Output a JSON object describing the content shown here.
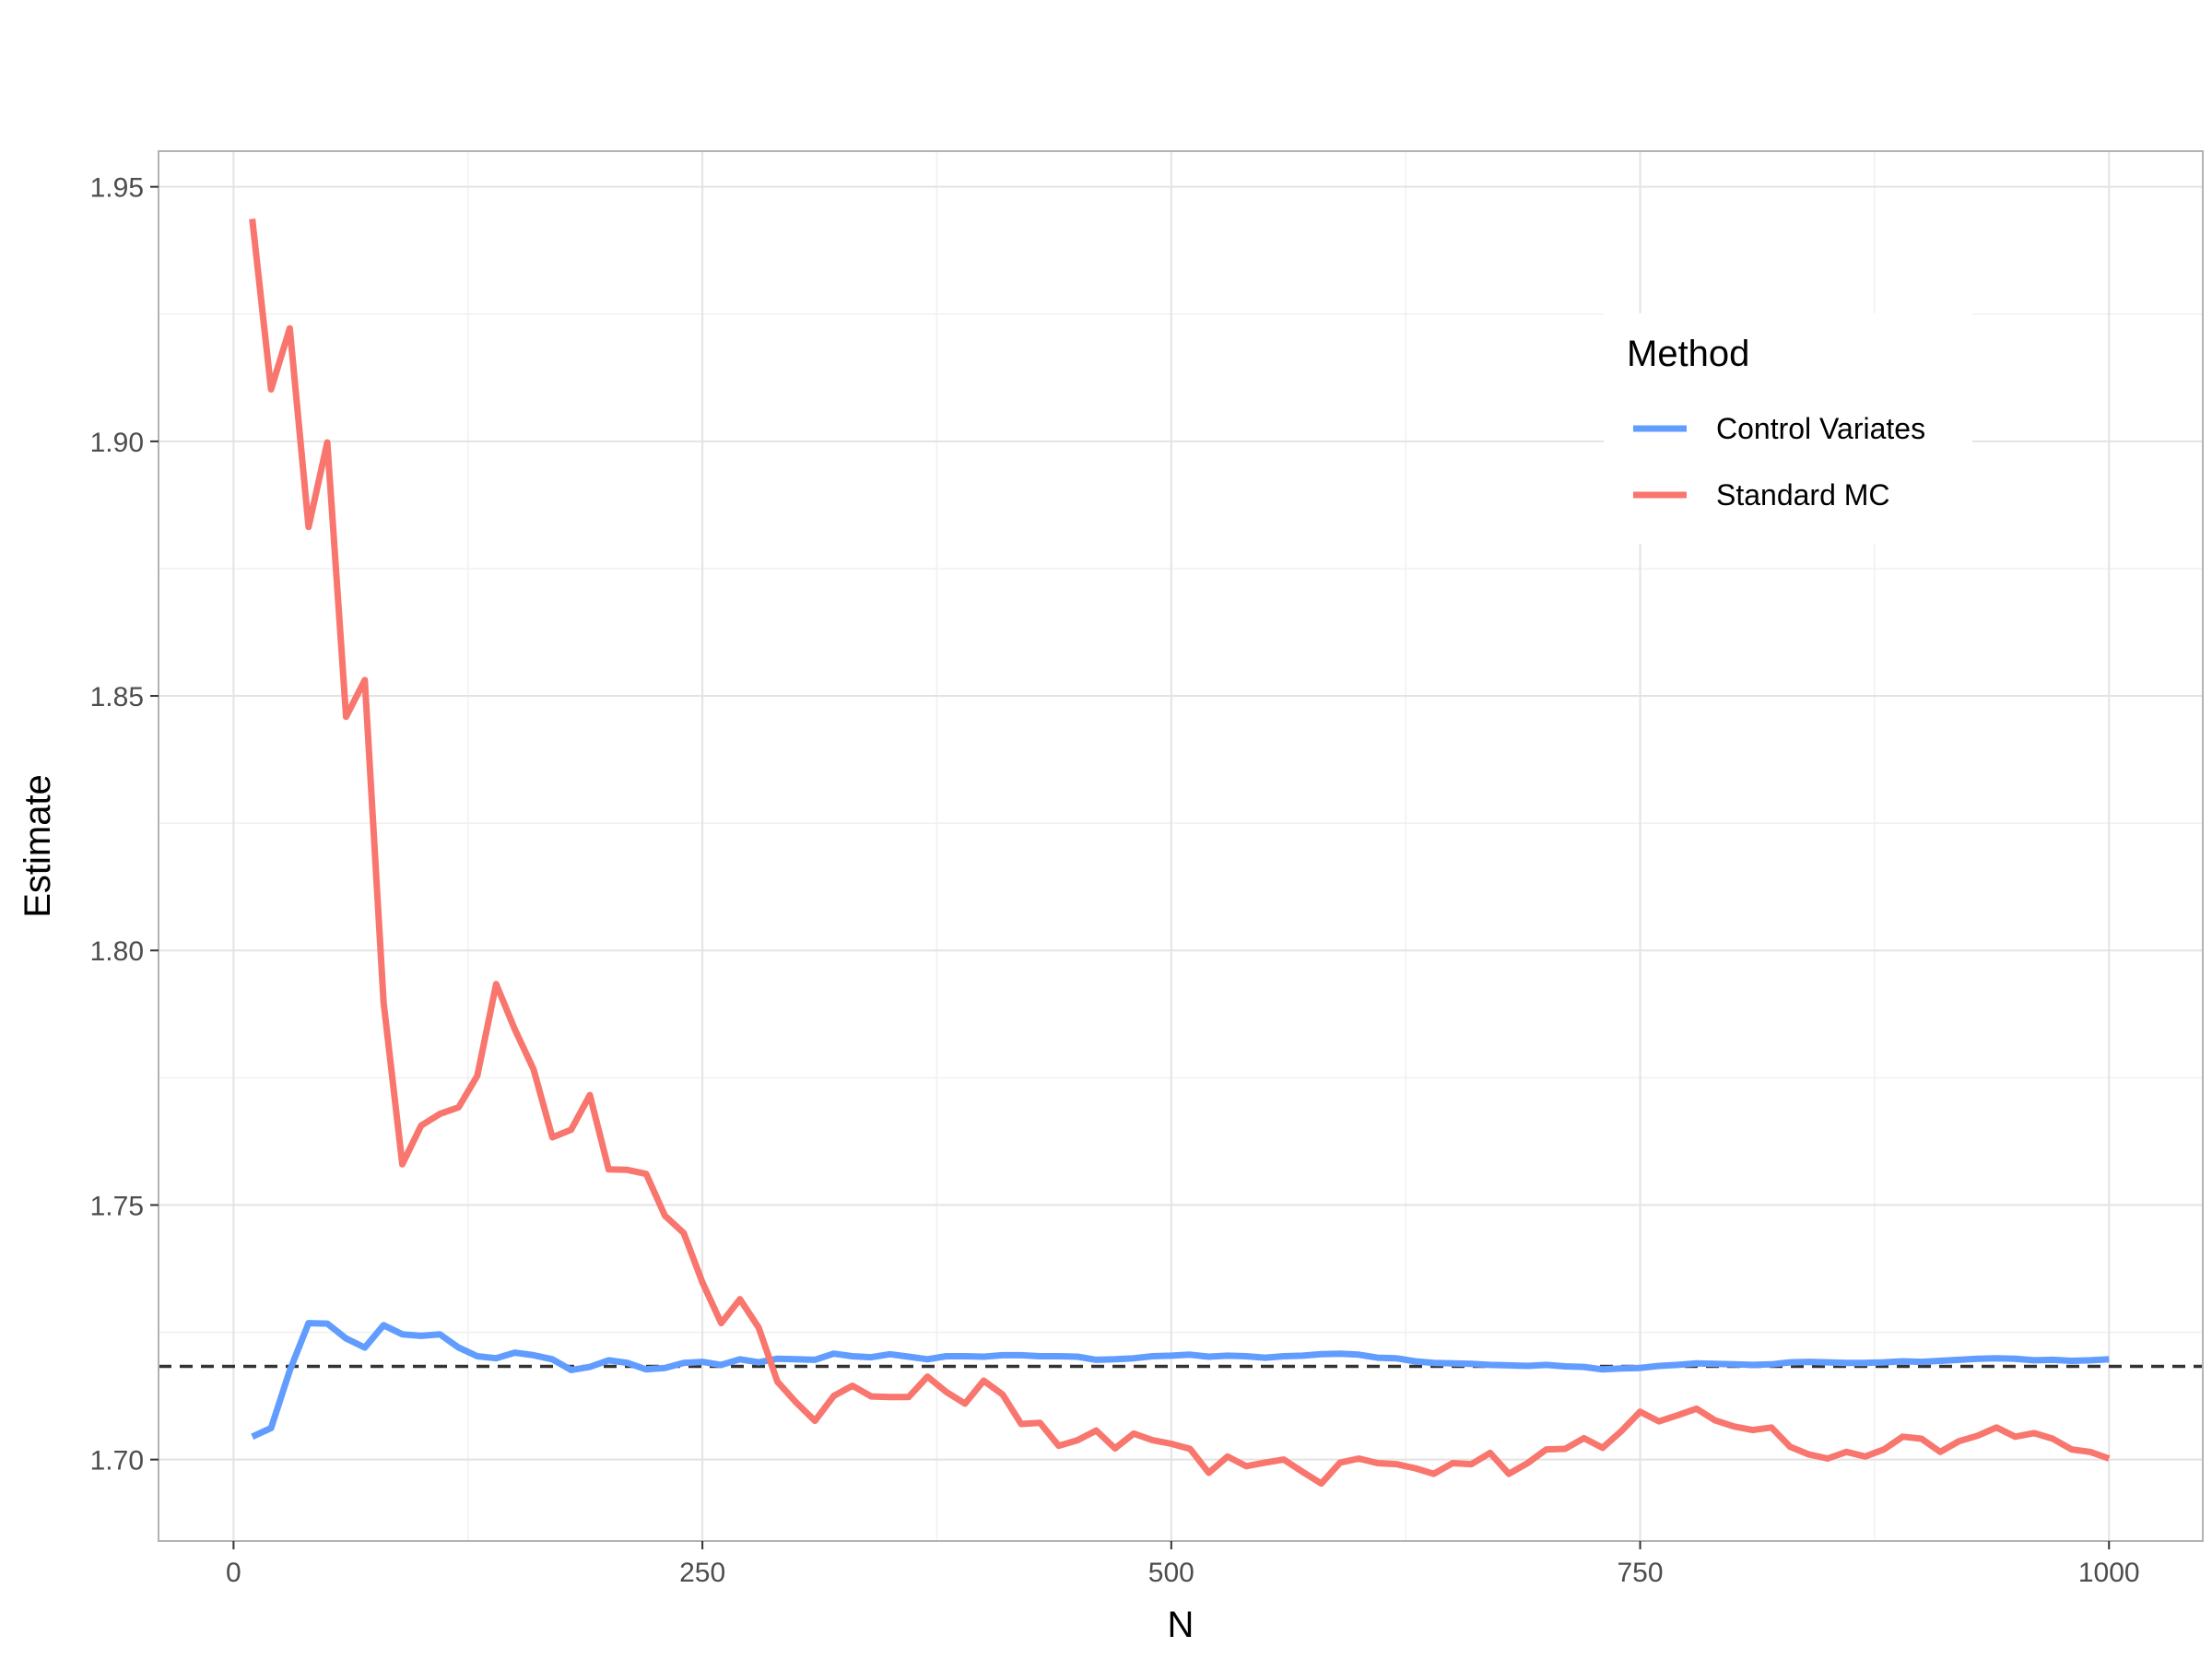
{
  "chart_data": {
    "type": "line",
    "title": "",
    "xlabel": "N",
    "ylabel": "Estimate",
    "xlim": [
      -40,
      1050
    ],
    "ylim": [
      1.684,
      1.957
    ],
    "x_ticks": [
      0,
      250,
      500,
      750,
      1000
    ],
    "x_tick_labels": [
      "0",
      "250",
      "500",
      "750",
      "1000"
    ],
    "y_ticks": [
      1.7,
      1.75,
      1.8,
      1.85,
      1.9,
      1.95
    ],
    "y_tick_labels": [
      "1.70",
      "1.75",
      "1.80",
      "1.85",
      "1.90",
      "1.95"
    ],
    "grid": true,
    "legend": {
      "title": "Method",
      "placement": "top-right",
      "entries": [
        "Control Variates",
        "Standard MC"
      ]
    },
    "reference_line": {
      "y": 1.7183,
      "style": "dashed",
      "color": "#333333"
    },
    "series": [
      {
        "name": "Control Variates",
        "color": "#619CFF",
        "x": [
          10,
          20,
          30,
          40,
          50,
          60,
          70,
          80,
          90,
          100,
          110,
          120,
          130,
          140,
          150,
          160,
          170,
          180,
          190,
          200,
          210,
          220,
          230,
          240,
          250,
          260,
          270,
          280,
          290,
          300,
          310,
          320,
          330,
          340,
          350,
          360,
          370,
          380,
          390,
          400,
          410,
          420,
          430,
          440,
          450,
          460,
          470,
          480,
          490,
          500,
          510,
          520,
          530,
          540,
          550,
          560,
          570,
          580,
          590,
          600,
          610,
          620,
          630,
          640,
          650,
          660,
          670,
          680,
          690,
          700,
          710,
          720,
          730,
          740,
          750,
          760,
          770,
          780,
          790,
          800,
          810,
          820,
          830,
          840,
          850,
          860,
          870,
          880,
          890,
          900,
          910,
          920,
          930,
          940,
          950,
          960,
          970,
          980,
          990,
          1000
        ],
        "y": [
          1.7045,
          1.7062,
          1.7175,
          1.7268,
          1.7267,
          1.7238,
          1.722,
          1.7264,
          1.7246,
          1.7243,
          1.7246,
          1.722,
          1.7203,
          1.7199,
          1.721,
          1.7205,
          1.7197,
          1.7176,
          1.7182,
          1.7195,
          1.719,
          1.7177,
          1.718,
          1.719,
          1.7192,
          1.7186,
          1.7197,
          1.7191,
          1.7198,
          1.7197,
          1.7196,
          1.7208,
          1.7203,
          1.7201,
          1.7207,
          1.7202,
          1.7197,
          1.7203,
          1.7203,
          1.7202,
          1.7205,
          1.7205,
          1.7203,
          1.7203,
          1.7202,
          1.7196,
          1.7197,
          1.7199,
          1.7203,
          1.7204,
          1.7206,
          1.7202,
          1.7204,
          1.7203,
          1.72,
          1.7203,
          1.7204,
          1.7207,
          1.7208,
          1.7206,
          1.72,
          1.7199,
          1.7193,
          1.719,
          1.7189,
          1.7188,
          1.7186,
          1.7185,
          1.7184,
          1.7186,
          1.7183,
          1.7182,
          1.7177,
          1.7179,
          1.718,
          1.7184,
          1.7186,
          1.7189,
          1.7188,
          1.7187,
          1.7186,
          1.7187,
          1.7191,
          1.7192,
          1.7191,
          1.719,
          1.719,
          1.7191,
          1.7193,
          1.7192,
          1.7194,
          1.7196,
          1.7198,
          1.7199,
          1.7198,
          1.7195,
          1.7196,
          1.7194,
          1.7195,
          1.7197
        ]
      },
      {
        "name": "Standard MC",
        "color": "#F8766D",
        "x": [
          10,
          20,
          30,
          40,
          50,
          60,
          70,
          80,
          90,
          100,
          110,
          120,
          130,
          140,
          150,
          160,
          170,
          180,
          190,
          200,
          210,
          220,
          230,
          240,
          250,
          260,
          270,
          280,
          290,
          300,
          310,
          320,
          330,
          340,
          350,
          360,
          370,
          380,
          390,
          400,
          410,
          420,
          430,
          440,
          450,
          460,
          470,
          480,
          490,
          500,
          510,
          520,
          530,
          540,
          550,
          560,
          570,
          580,
          590,
          600,
          610,
          620,
          630,
          640,
          650,
          660,
          670,
          680,
          690,
          700,
          710,
          720,
          730,
          740,
          750,
          760,
          770,
          780,
          790,
          800,
          810,
          820,
          830,
          840,
          850,
          860,
          870,
          880,
          890,
          900,
          910,
          920,
          930,
          940,
          950,
          960,
          970,
          980,
          990,
          1000
        ],
        "y": [
          1.9437,
          1.9102,
          1.9222,
          1.8832,
          1.8998,
          1.8459,
          1.8531,
          1.7898,
          1.758,
          1.7656,
          1.7679,
          1.7692,
          1.7754,
          1.7934,
          1.7845,
          1.7766,
          1.7633,
          1.7648,
          1.7716,
          1.757,
          1.7569,
          1.7561,
          1.7479,
          1.7445,
          1.7348,
          1.7268,
          1.7315,
          1.7259,
          1.7153,
          1.7112,
          1.7076,
          1.7125,
          1.7145,
          1.7124,
          1.7123,
          1.7123,
          1.7163,
          1.7133,
          1.711,
          1.7155,
          1.7128,
          1.707,
          1.7072,
          1.7027,
          1.7038,
          1.7057,
          1.7022,
          1.7051,
          1.7038,
          1.7031,
          1.7021,
          1.6974,
          1.7006,
          1.6987,
          1.6994,
          1.7,
          1.6976,
          1.6953,
          1.6994,
          1.7002,
          1.6993,
          1.6991,
          1.6983,
          1.6972,
          1.6993,
          1.6991,
          1.7013,
          1.6972,
          1.6993,
          1.702,
          1.7021,
          1.7042,
          1.7023,
          1.7056,
          1.7094,
          1.7075,
          1.7087,
          1.71,
          1.7077,
          1.7065,
          1.7058,
          1.7063,
          1.7025,
          1.701,
          1.7002,
          1.7015,
          1.7006,
          1.702,
          1.7045,
          1.7041,
          1.7015,
          1.7036,
          1.7047,
          1.7063,
          1.7045,
          1.7052,
          1.7041,
          1.702,
          1.7015,
          1.7002
        ]
      }
    ]
  }
}
